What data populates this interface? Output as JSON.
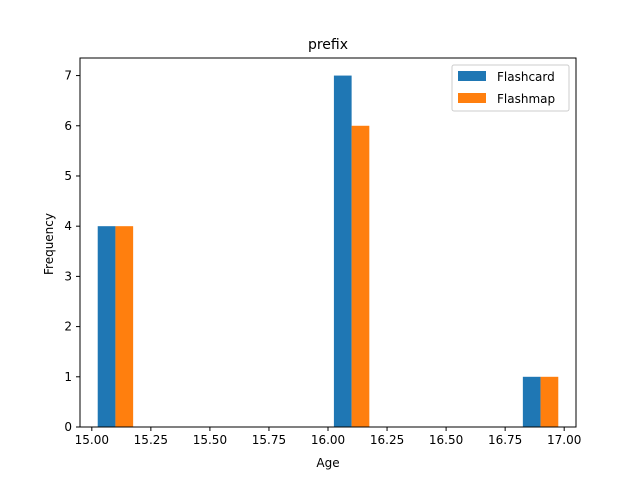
{
  "chart_data": {
    "type": "bar",
    "title": "prefix",
    "xlabel": "Age",
    "ylabel": "Frequency",
    "xlim": [
      14.95,
      17.05
    ],
    "ylim": [
      0,
      7.35
    ],
    "xticks": [
      15.0,
      15.25,
      15.5,
      15.75,
      16.0,
      16.25,
      16.5,
      16.75,
      17.0
    ],
    "xtick_labels": [
      "15.00",
      "15.25",
      "15.50",
      "15.75",
      "16.00",
      "16.25",
      "16.50",
      "16.75",
      "17.00"
    ],
    "yticks": [
      0,
      1,
      2,
      3,
      4,
      5,
      6,
      7
    ],
    "ytick_labels": [
      "0",
      "1",
      "2",
      "3",
      "4",
      "5",
      "6",
      "7"
    ],
    "legend_position": "top-right",
    "grid": false,
    "series": [
      {
        "name": "Flashcard",
        "color": "#1f77b4",
        "bars": [
          {
            "x_start": 15.025,
            "x_end": 15.1,
            "value": 4
          },
          {
            "x_start": 16.025,
            "x_end": 16.1,
            "value": 7
          },
          {
            "x_start": 16.825,
            "x_end": 16.9,
            "value": 1
          }
        ]
      },
      {
        "name": "Flashmap",
        "color": "#ff7f0e",
        "bars": [
          {
            "x_start": 15.1,
            "x_end": 15.175,
            "value": 4
          },
          {
            "x_start": 16.1,
            "x_end": 16.175,
            "value": 6
          },
          {
            "x_start": 16.9,
            "x_end": 16.975,
            "value": 1
          }
        ]
      }
    ]
  }
}
